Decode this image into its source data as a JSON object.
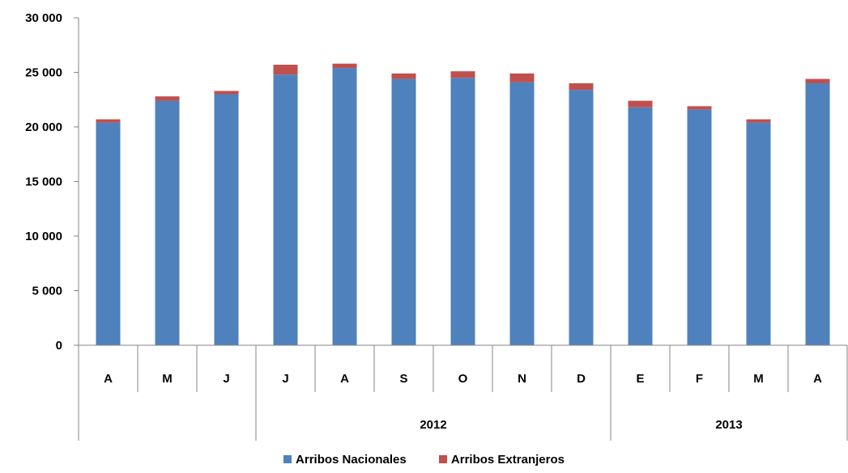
{
  "chart_data": {
    "type": "bar",
    "stacked": true,
    "categories": [
      "A",
      "M",
      "J",
      "J",
      "A",
      "S",
      "O",
      "N",
      "D",
      "E",
      "F",
      "M",
      "A"
    ],
    "groups": [
      {
        "label": "",
        "start": 0,
        "end": 2
      },
      {
        "label": "2012",
        "start": 3,
        "end": 8
      },
      {
        "label": "2013",
        "start": 9,
        "end": 12
      }
    ],
    "series": [
      {
        "name": "Arribos Nacionales",
        "color": "#4F81BD",
        "values": [
          20400,
          22400,
          23000,
          24800,
          25400,
          24400,
          24500,
          24100,
          23400,
          21800,
          21600,
          20400,
          24000
        ]
      },
      {
        "name": "Arribos Extranjeros",
        "color": "#C0504D",
        "values": [
          300,
          400,
          300,
          900,
          400,
          500,
          600,
          800,
          600,
          600,
          300,
          300,
          400
        ]
      }
    ],
    "y_ticks": [
      "0",
      "5 000",
      "10 000",
      "15 000",
      "20 000",
      "25 000",
      "30 000"
    ],
    "ylim": [
      0,
      30000
    ],
    "grid": false,
    "legend_position": "bottom"
  }
}
